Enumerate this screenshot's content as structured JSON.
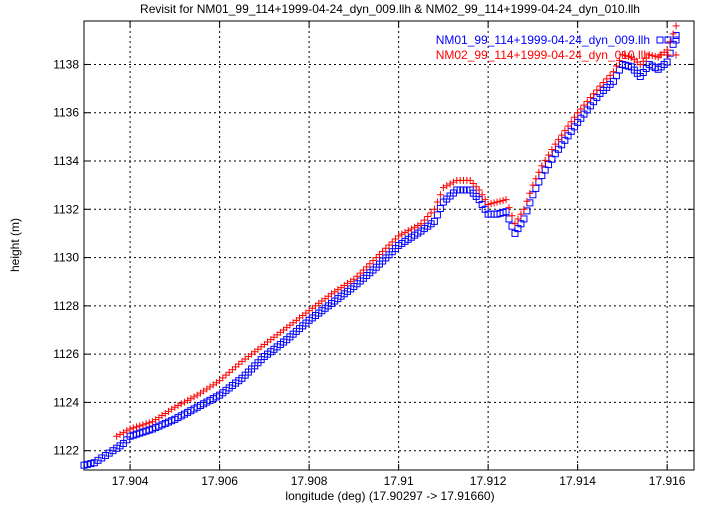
{
  "chart_data": {
    "type": "scatter",
    "title": "Revisit for NM01_99_114+1999-04-24_dyn_009.llh & NM02_99_114+1999-04-24_dyn_010.llh",
    "xlabel": "longitude (deg) (17.90297 -> 17.91660)",
    "ylabel": "height (m)",
    "xlim": [
      17.90297,
      17.9166
    ],
    "ylim": [
      1121.2,
      1139.8
    ],
    "grid": true,
    "legend_position": "top-right",
    "x_ticks": [
      17.904,
      17.906,
      17.908,
      17.91,
      17.912,
      17.914,
      17.916
    ],
    "x_tick_labels": [
      "17.904",
      "17.906",
      "17.908",
      "17.91",
      "17.912",
      "17.914",
      "17.916"
    ],
    "y_ticks": [
      1122,
      1124,
      1126,
      1128,
      1130,
      1132,
      1134,
      1136,
      1138
    ],
    "y_tick_labels": [
      "1122",
      "1124",
      "1126",
      "1128",
      "1130",
      "1132",
      "1134",
      "1136",
      "1138"
    ],
    "series": [
      {
        "name": "NM01_99_114+1999-04-24_dyn_009.llh",
        "marker": "square",
        "color": "#0000ff",
        "x": [
          17.90297,
          17.9032,
          17.90345,
          17.9037,
          17.90385,
          17.904,
          17.9045,
          17.905,
          17.9055,
          17.906,
          17.9065,
          17.907,
          17.9075,
          17.908,
          17.9085,
          17.909,
          17.9095,
          17.91,
          17.9105,
          17.9108,
          17.911,
          17.9113,
          17.9116,
          17.9118,
          17.912,
          17.9122,
          17.9124,
          17.9126,
          17.9128,
          17.913,
          17.9132,
          17.9135,
          17.914,
          17.9145,
          17.9148,
          17.915,
          17.9152,
          17.9154,
          17.9156,
          17.9158,
          17.916,
          17.9162
        ],
        "values": [
          1121.4,
          1121.5,
          1121.8,
          1122.1,
          1122.3,
          1122.6,
          1122.9,
          1123.3,
          1123.8,
          1124.3,
          1125.0,
          1125.9,
          1126.6,
          1127.4,
          1128.1,
          1128.8,
          1129.6,
          1130.5,
          1131.1,
          1131.5,
          1132.3,
          1132.8,
          1132.8,
          1132.4,
          1131.8,
          1131.8,
          1131.9,
          1131.0,
          1131.6,
          1132.6,
          1133.4,
          1134.3,
          1135.6,
          1136.8,
          1137.3,
          1138.0,
          1137.9,
          1137.5,
          1138.0,
          1137.8,
          1138.1,
          1139.2
        ]
      },
      {
        "name": "NM02_99_114+1999-04-24_dyn_010.llh",
        "marker": "plus",
        "color": "#ff0000",
        "x": [
          17.9037,
          17.904,
          17.9045,
          17.905,
          17.9055,
          17.906,
          17.9065,
          17.907,
          17.9075,
          17.908,
          17.9085,
          17.909,
          17.9095,
          17.91,
          17.9105,
          17.9108,
          17.911,
          17.9113,
          17.9116,
          17.9118,
          17.912,
          17.9122,
          17.9124,
          17.9126,
          17.9128,
          17.913,
          17.9132,
          17.9135,
          17.914,
          17.9145,
          17.9148,
          17.915,
          17.9152,
          17.9154,
          17.9156,
          17.9158,
          17.916,
          17.9162
        ],
        "values": [
          1122.6,
          1122.9,
          1123.2,
          1123.8,
          1124.3,
          1124.9,
          1125.7,
          1126.4,
          1127.1,
          1127.8,
          1128.5,
          1129.1,
          1130.0,
          1130.9,
          1131.4,
          1132.0,
          1132.9,
          1133.2,
          1133.2,
          1132.8,
          1132.2,
          1132.3,
          1132.4,
          1131.4,
          1132.0,
          1133.0,
          1133.8,
          1134.7,
          1136.0,
          1137.1,
          1137.7,
          1138.4,
          1138.3,
          1138.0,
          1138.4,
          1138.3,
          1138.6,
          1139.6
        ]
      }
    ]
  }
}
